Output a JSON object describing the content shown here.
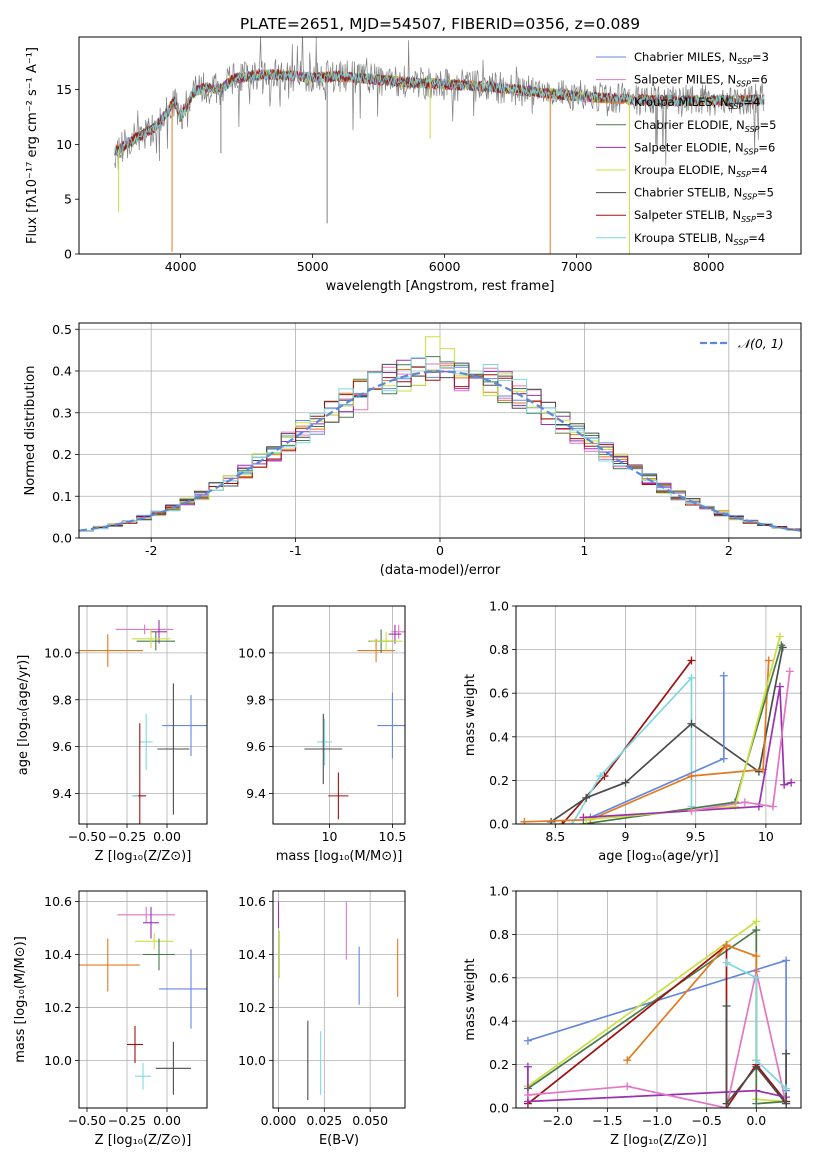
{
  "figure": {
    "title": "PLATE=2651, MJD=54507, FIBERID=0356, z=0.089"
  },
  "colors": {
    "Chabrier MILES": "#6688dd",
    "Salpeter MILES": "#e377c2",
    "Kroupa MILES": "#e07b20",
    "Chabrier ELODIE": "#4a7a4a",
    "Salpeter ELODIE": "#9b30b0",
    "Kroupa ELODIE": "#c8e040",
    "Chabrier STELIB": "#4c4c4c",
    "Salpeter STELIB": "#a01010",
    "Kroupa STELIB": "#7fd8e0",
    "gaussian": "#5a8ad8",
    "grid": "#b0b0b0",
    "data": "#808080"
  },
  "chart_data": [
    {
      "id": "spectrum",
      "type": "line",
      "xlabel": "wavelength [Angstrom, rest frame]",
      "ylabel": "Flux [fλ10⁻¹⁷ erg cm⁻² s⁻¹ A⁻¹]",
      "xlim": [
        3230,
        8700
      ],
      "ylim": [
        0,
        19.8
      ],
      "xticks": [
        4000,
        5000,
        6000,
        7000,
        8000
      ],
      "yticks": [
        0,
        5,
        10,
        15
      ],
      "grid": false,
      "legend_position": "right",
      "series": [
        {
          "name": "Chabrier MILES, N$_{SSP}$=3",
          "label": "Chabrier MILES, N",
          "sub": "SSP",
          "n": "=3",
          "color_key": "Chabrier MILES"
        },
        {
          "name": "Salpeter MILES, N$_{SSP}$=6",
          "label": "Salpeter MILES, N",
          "sub": "SSP",
          "n": "=6",
          "color_key": "Salpeter MILES"
        },
        {
          "name": "Kroupa MILES, N$_{SSP}$=4",
          "label": "Kroupa MILES, N",
          "sub": "SSP",
          "n": "=4",
          "color_key": "Kroupa MILES"
        },
        {
          "name": "Chabrier ELODIE, N$_{SSP}$=5",
          "label": "Chabrier ELODIE, N",
          "sub": "SSP",
          "n": "=5",
          "color_key": "Chabrier ELODIE"
        },
        {
          "name": "Salpeter ELODIE, N$_{SSP}$=6",
          "label": "Salpeter ELODIE, N",
          "sub": "SSP",
          "n": "=6",
          "color_key": "Salpeter ELODIE"
        },
        {
          "name": "Kroupa ELODIE, N$_{SSP}$=4",
          "label": "Kroupa ELODIE, N",
          "sub": "SSP",
          "n": "=4",
          "color_key": "Kroupa ELODIE"
        },
        {
          "name": "Chabrier STELIB, N$_{SSP}$=5",
          "label": "Chabrier STELIB, N",
          "sub": "SSP",
          "n": "=5",
          "color_key": "Chabrier STELIB"
        },
        {
          "name": "Salpeter STELIB, N$_{SSP}$=3",
          "label": "Salpeter STELIB, N",
          "sub": "SSP",
          "n": "=3",
          "color_key": "Salpeter STELIB"
        },
        {
          "name": "Kroupa STELIB, N$_{SSP}$=4",
          "label": "Kroupa STELIB, N",
          "sub": "SSP",
          "n": "=4",
          "color_key": "Kroupa STELIB"
        }
      ],
      "continuum": [
        [
          3530,
          9.5
        ],
        [
          3650,
          10.5
        ],
        [
          3800,
          11.5
        ],
        [
          3900,
          13.0
        ],
        [
          3950,
          14.0
        ],
        [
          4000,
          12.5
        ],
        [
          4100,
          14.8
        ],
        [
          4200,
          15.2
        ],
        [
          4300,
          15.0
        ],
        [
          4400,
          16.0
        ],
        [
          4500,
          16.2
        ],
        [
          4700,
          16.4
        ],
        [
          5000,
          16.1
        ],
        [
          5200,
          16.2
        ],
        [
          5500,
          15.9
        ],
        [
          5800,
          15.6
        ],
        [
          6000,
          15.5
        ],
        [
          6300,
          15.3
        ],
        [
          6600,
          14.9
        ],
        [
          7000,
          14.4
        ],
        [
          7400,
          14.1
        ],
        [
          7800,
          14.0
        ],
        [
          8200,
          14.0
        ],
        [
          8400,
          14.1
        ]
      ],
      "absorption_dips": [
        [
          3530,
          3.8
        ],
        [
          3935,
          0.2
        ],
        [
          4305,
          9.2
        ],
        [
          5110,
          2.8
        ],
        [
          5890,
          10.5
        ],
        [
          6800,
          0.0
        ],
        [
          7400,
          0.0
        ],
        [
          7600,
          10.0
        ]
      ]
    },
    {
      "id": "residuals",
      "type": "step",
      "xlabel": "(data-model)/error",
      "ylabel": "Normed distribution",
      "xlim": [
        -2.5,
        2.5
      ],
      "ylim": [
        0,
        0.515
      ],
      "xticks": [
        -2,
        -1,
        0,
        1,
        2
      ],
      "yticks": [
        0.0,
        0.1,
        0.2,
        0.3,
        0.4,
        0.5
      ],
      "grid": true,
      "legend_position": "top-right",
      "gaussian_label": "𝒩(0, 1)",
      "bins": 50,
      "peak_by_color": {
        "Chabrier MILES": 0.41,
        "Salpeter MILES": 0.44,
        "Kroupa MILES": 0.42,
        "Chabrier ELODIE": 0.45,
        "Salpeter ELODIE": 0.41,
        "Kroupa ELODIE": 0.49,
        "Chabrier STELIB": 0.4,
        "Salpeter STELIB": 0.41,
        "Kroupa STELIB": 0.43
      }
    },
    {
      "id": "age-Z",
      "type": "errorbar",
      "xlabel": "Z [log₁₀(Z/Z⊙)]",
      "ylabel": "age  [log₁₀(age/yr)]",
      "xlim": [
        -0.55,
        0.25
      ],
      "ylim": [
        9.27,
        10.2
      ],
      "xticks": [
        -0.5,
        -0.25,
        0.0
      ],
      "xticklabels": [
        "−0.50",
        "−0.25",
        "0.00"
      ],
      "yticks": [
        9.4,
        9.6,
        9.8,
        10.0
      ],
      "grid": true,
      "points": [
        {
          "color_key": "Kroupa MILES",
          "x": -0.37,
          "xerr": 0.22,
          "y": 10.01,
          "yerr": 0.07
        },
        {
          "color_key": "Salpeter MILES",
          "x": -0.14,
          "xerr": 0.18,
          "y": 10.1,
          "yerr": 0.02
        },
        {
          "color_key": "Salpeter ELODIE",
          "x": -0.05,
          "xerr": 0.05,
          "y": 10.09,
          "yerr": 0.05
        },
        {
          "color_key": "Chabrier ELODIE",
          "x": -0.07,
          "xerr": 0.12,
          "y": 10.05,
          "yerr": 0.04
        },
        {
          "color_key": "Kroupa ELODIE",
          "x": -0.1,
          "xerr": 0.12,
          "y": 10.06,
          "yerr": 0.04
        },
        {
          "color_key": "Chabrier MILES",
          "x": 0.15,
          "xerr": 0.18,
          "y": 9.69,
          "yerr": 0.13
        },
        {
          "color_key": "Kroupa STELIB",
          "x": -0.13,
          "xerr": 0.04,
          "y": 9.62,
          "yerr": 0.12
        },
        {
          "color_key": "Chabrier STELIB",
          "x": 0.04,
          "xerr": 0.1,
          "y": 9.59,
          "yerr": 0.28
        },
        {
          "color_key": "Salpeter STELIB",
          "x": -0.17,
          "xerr": 0.04,
          "y": 9.39,
          "yerr": 0.31
        },
        {
          "color_key": "Kroupa STELIB",
          "x": -0.2,
          "xerr": 0.02,
          "y": 9.39,
          "yerr": 0.0
        }
      ]
    },
    {
      "id": "age-mass",
      "type": "errorbar",
      "xlabel": "mass [log₁₀(M/M⊙)]",
      "ylabel": "",
      "xlim": [
        9.55,
        10.6
      ],
      "ylim": [
        9.27,
        10.2
      ],
      "xticks": [
        10.0,
        10.5
      ],
      "yticks": [
        9.4,
        9.6,
        9.8,
        10.0
      ],
      "grid": true,
      "points": [
        {
          "color_key": "Kroupa MILES",
          "x": 10.37,
          "xerr": 0.15,
          "y": 10.01,
          "yerr": 0.05
        },
        {
          "color_key": "Salpeter MILES",
          "x": 10.55,
          "xerr": 0.06,
          "y": 10.09,
          "yerr": 0.03
        },
        {
          "color_key": "Salpeter ELODIE",
          "x": 10.52,
          "xerr": 0.05,
          "y": 10.08,
          "yerr": 0.04
        },
        {
          "color_key": "Chabrier ELODIE",
          "x": 10.41,
          "xerr": 0.1,
          "y": 10.05,
          "yerr": 0.05
        },
        {
          "color_key": "Kroupa ELODIE",
          "x": 10.45,
          "xerr": 0.13,
          "y": 10.05,
          "yerr": 0.04
        },
        {
          "color_key": "Chabrier MILES",
          "x": 10.5,
          "xerr": 0.12,
          "y": 9.69,
          "yerr": 0.14
        },
        {
          "color_key": "Kroupa STELIB",
          "x": 9.96,
          "xerr": 0.06,
          "y": 9.62,
          "yerr": 0.1
        },
        {
          "color_key": "Chabrier STELIB",
          "x": 9.95,
          "xerr": 0.15,
          "y": 9.59,
          "yerr": 0.15
        },
        {
          "color_key": "Salpeter STELIB",
          "x": 10.07,
          "xerr": 0.08,
          "y": 9.39,
          "yerr": 0.1
        }
      ]
    },
    {
      "id": "weight-age",
      "type": "line",
      "xlabel": "age  [log₁₀(age/yr)]",
      "ylabel": "mass weight",
      "xlim": [
        8.22,
        10.25
      ],
      "ylim": [
        0,
        1.0
      ],
      "xticks": [
        8.5,
        9.0,
        9.5,
        10.0
      ],
      "yticks": [
        0.0,
        0.2,
        0.4,
        0.6,
        0.8,
        1.0
      ],
      "grid": true,
      "series": [
        {
          "color_key": "Salpeter STELIB",
          "x": [
            8.55,
            8.85,
            9.47
          ],
          "y": [
            0.0,
            0.22,
            0.75
          ]
        },
        {
          "color_key": "Kroupa STELIB",
          "x": [
            8.62,
            8.82,
            9.47,
            9.47
          ],
          "y": [
            0.0,
            0.22,
            0.67,
            0.08
          ]
        },
        {
          "color_key": "Chabrier STELIB",
          "x": [
            8.47,
            8.72,
            9.0,
            9.47,
            9.95,
            10.12
          ],
          "y": [
            0.01,
            0.12,
            0.19,
            0.46,
            0.24,
            0.81
          ]
        },
        {
          "color_key": "Chabrier MILES",
          "x": [
            8.75,
            9.7,
            9.7
          ],
          "y": [
            0.03,
            0.3,
            0.68
          ]
        },
        {
          "color_key": "Kroupa MILES",
          "x": [
            8.28,
            8.75,
            9.47,
            9.98,
            10.02
          ],
          "y": [
            0.01,
            0.02,
            0.22,
            0.25,
            0.75
          ]
        },
        {
          "color_key": "Chabrier ELODIE",
          "x": [
            8.7,
            9.78,
            10.11
          ],
          "y": [
            0.0,
            0.1,
            0.82
          ]
        },
        {
          "color_key": "Kroupa ELODIE",
          "x": [
            8.72,
            9.78,
            10.1
          ],
          "y": [
            0.02,
            0.08,
            0.86
          ]
        },
        {
          "color_key": "Salpeter ELODIE",
          "x": [
            8.7,
            9.95,
            10.1,
            10.13,
            10.18
          ],
          "y": [
            0.03,
            0.08,
            0.63,
            0.18,
            0.19
          ]
        },
        {
          "color_key": "Salpeter MILES",
          "x": [
            9.47,
            9.85,
            10.05,
            10.17
          ],
          "y": [
            0.06,
            0.1,
            0.08,
            0.7
          ]
        }
      ]
    },
    {
      "id": "mass-Z",
      "type": "errorbar",
      "xlabel": "Z [log₁₀(Z/Z⊙)]",
      "ylabel": "mass [log₁₀(M/M⊙)]",
      "xlim": [
        -0.55,
        0.25
      ],
      "ylim": [
        9.82,
        10.64
      ],
      "xticks": [
        -0.5,
        -0.25,
        0.0
      ],
      "xticklabels": [
        "−0.50",
        "−0.25",
        "0.00"
      ],
      "yticks": [
        10.0,
        10.2,
        10.4,
        10.6
      ],
      "grid": true,
      "points": [
        {
          "color_key": "Kroupa MILES",
          "x": -0.37,
          "xerr": 0.2,
          "y": 10.36,
          "yerr": 0.1
        },
        {
          "color_key": "Salpeter MILES",
          "x": -0.13,
          "xerr": 0.18,
          "y": 10.55,
          "yerr": 0.03
        },
        {
          "color_key": "Salpeter ELODIE",
          "x": -0.1,
          "xerr": 0.05,
          "y": 10.52,
          "yerr": 0.06
        },
        {
          "color_key": "Kroupa ELODIE",
          "x": -0.08,
          "xerr": 0.12,
          "y": 10.45,
          "yerr": 0.03
        },
        {
          "color_key": "Chabrier ELODIE",
          "x": -0.05,
          "xerr": 0.1,
          "y": 10.4,
          "yerr": 0.06
        },
        {
          "color_key": "Chabrier MILES",
          "x": 0.15,
          "xerr": 0.2,
          "y": 10.27,
          "yerr": 0.15
        },
        {
          "color_key": "Salpeter STELIB",
          "x": -0.2,
          "xerr": 0.05,
          "y": 10.06,
          "yerr": 0.07
        },
        {
          "color_key": "Chabrier STELIB",
          "x": 0.04,
          "xerr": 0.11,
          "y": 9.97,
          "yerr": 0.1
        },
        {
          "color_key": "Kroupa STELIB",
          "x": -0.15,
          "xerr": 0.05,
          "y": 9.94,
          "yerr": 0.05
        }
      ]
    },
    {
      "id": "mass-EBV",
      "type": "errorbar",
      "xlabel": "E(B-V)",
      "ylabel": "",
      "xlim": [
        -0.003,
        0.069
      ],
      "ylim": [
        9.82,
        10.64
      ],
      "xticks": [
        0.0,
        0.025,
        0.05
      ],
      "xticklabels": [
        "0.000",
        "0.025",
        "0.050"
      ],
      "yticks": [
        10.0,
        10.2,
        10.4,
        10.6
      ],
      "grid": true,
      "points": [
        {
          "color_key": "Salpeter ELODIE",
          "x": 0.0,
          "xerr": 0.0,
          "y": 10.55,
          "yerr": 0.05
        },
        {
          "color_key": "Kroupa ELODIE",
          "x": 0.0005,
          "xerr": 0.0,
          "y": 10.4,
          "yerr": 0.09
        },
        {
          "color_key": "Chabrier STELIB",
          "x": 0.016,
          "xerr": 0.0,
          "y": 10.0,
          "yerr": 0.15
        },
        {
          "color_key": "Kroupa STELIB",
          "x": 0.023,
          "xerr": 0.0,
          "y": 9.99,
          "yerr": 0.12
        },
        {
          "color_key": "Salpeter MILES",
          "x": 0.037,
          "xerr": 0.0,
          "y": 10.49,
          "yerr": 0.11
        },
        {
          "color_key": "Chabrier MILES",
          "x": 0.044,
          "xerr": 0.0,
          "y": 10.32,
          "yerr": 0.11
        },
        {
          "color_key": "Kroupa MILES",
          "x": 0.065,
          "xerr": 0.0,
          "y": 10.35,
          "yerr": 0.11
        }
      ]
    },
    {
      "id": "weight-Z",
      "type": "line",
      "xlabel": "Z [log₁₀(Z/Z⊙)]",
      "ylabel": "mass weight",
      "xlim": [
        -2.42,
        0.45
      ],
      "ylim": [
        0,
        1.0
      ],
      "xticks": [
        -2.0,
        -1.5,
        -1.0,
        -0.5,
        0.0
      ],
      "xticklabels": [
        "−2.0",
        "−1.5",
        "−1.0",
        "−0.5",
        "0.0"
      ],
      "yticks": [
        0.0,
        0.2,
        0.4,
        0.6,
        0.8,
        1.0
      ],
      "grid": true,
      "series": [
        {
          "color_key": "Chabrier MILES",
          "x": [
            -2.3,
            0.3,
            0.3
          ],
          "y": [
            0.31,
            0.68,
            0.08
          ]
        },
        {
          "color_key": "Kroupa ELODIE",
          "x": [
            -2.3,
            0.0,
            0.0,
            0.3
          ],
          "y": [
            0.1,
            0.86,
            0.04,
            0.03
          ]
        },
        {
          "color_key": "Chabrier ELODIE",
          "x": [
            -2.3,
            0.0,
            0.0,
            0.3
          ],
          "y": [
            0.09,
            0.82,
            0.02,
            0.03
          ]
        },
        {
          "color_key": "Salpeter STELIB",
          "x": [
            -2.3,
            -0.3,
            -0.3,
            0.0,
            0.3
          ],
          "y": [
            0.02,
            0.75,
            0.0,
            0.2,
            0.03
          ]
        },
        {
          "color_key": "Salpeter ELODIE",
          "x": [
            -2.3,
            -2.3,
            0.0,
            0.3
          ],
          "y": [
            0.19,
            0.03,
            0.08,
            0.05
          ]
        },
        {
          "color_key": "Salpeter MILES",
          "x": [
            -2.3,
            -1.3,
            -0.3,
            0.0,
            0.3
          ],
          "y": [
            0.06,
            0.1,
            0.0,
            0.63,
            0.02
          ]
        },
        {
          "color_key": "Kroupa MILES",
          "x": [
            -1.3,
            -0.3,
            0.0,
            0.0
          ],
          "y": [
            0.22,
            0.75,
            0.7,
            0.22
          ]
        },
        {
          "color_key": "Chabrier STELIB",
          "x": [
            -0.3,
            -0.3,
            -0.3,
            0.0,
            0.3,
            0.3
          ],
          "y": [
            0.47,
            0.0,
            0.02,
            0.19,
            0.02,
            0.25
          ]
        },
        {
          "color_key": "Kroupa STELIB",
          "x": [
            -0.3,
            0.0,
            0.0,
            0.3
          ],
          "y": [
            0.67,
            0.6,
            0.22,
            0.09
          ]
        }
      ]
    }
  ]
}
